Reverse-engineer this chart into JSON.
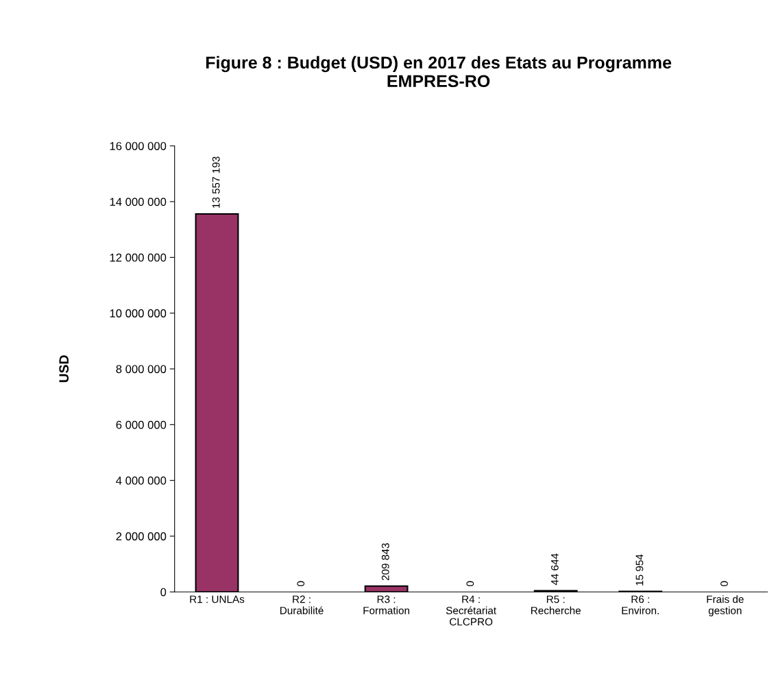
{
  "chart_data": {
    "type": "bar",
    "title": "Figure 8 : Budget (USD) en 2017 des Etats au Programme\nEMPRES-RO",
    "ylabel": "USD",
    "categories": [
      "R1 : UNLAs",
      "R2 :\nDurabilité",
      "R3 :\nFormation",
      "R4 :\nSecrétariat\nCLCPRO",
      "R5 :\nRecherche",
      "R6 :\nEnviron.",
      "Frais de\ngestion"
    ],
    "values": [
      13557193,
      0,
      209843,
      0,
      44644,
      15954,
      0
    ],
    "value_labels": [
      "13 557 193",
      "0",
      "209 843",
      "0",
      "44 644",
      "15 954",
      "0"
    ],
    "color": "#993366",
    "ylim": [
      0,
      16000000
    ],
    "yticks": [
      {
        "value": 0,
        "label": "0"
      },
      {
        "value": 2000000,
        "label": "2 000 000"
      },
      {
        "value": 4000000,
        "label": "4 000 000"
      },
      {
        "value": 6000000,
        "label": "6 000 000"
      },
      {
        "value": 8000000,
        "label": "8 000 000"
      },
      {
        "value": 10000000,
        "label": "10 000 000"
      },
      {
        "value": 12000000,
        "label": "12 000 000"
      },
      {
        "value": 14000000,
        "label": "14 000 000"
      },
      {
        "value": 16000000,
        "label": "16 000 000"
      }
    ],
    "grid": false,
    "legend": false
  }
}
